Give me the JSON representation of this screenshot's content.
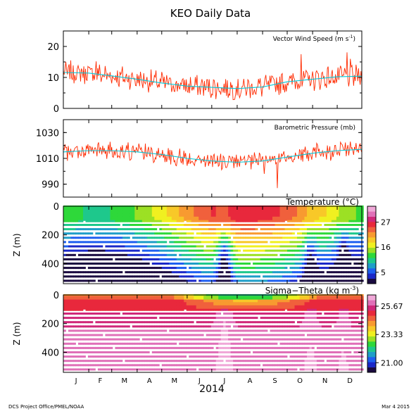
{
  "title": "KEO Daily Data",
  "footer_left": "DCS Project Office/PMEL/NOAA",
  "footer_right": "Mar  4 2015",
  "x_axis": {
    "months": [
      "J",
      "F",
      "M",
      "A",
      "M",
      "J",
      "J",
      "A",
      "S",
      "O",
      "N",
      "D"
    ],
    "year_label": "2014"
  },
  "colors": {
    "series_line": "#ff2a00",
    "mean_line": "#00c8d8",
    "palette": [
      "#1a0a40",
      "#1b28c8",
      "#1e5ff0",
      "#1e9ec8",
      "#1ec88c",
      "#2ed83a",
      "#9ce024",
      "#f0f020",
      "#f8c828",
      "#f89a30",
      "#f0603c",
      "#e8283c",
      "#d0287a",
      "#e070b8",
      "#f0a8d8"
    ]
  },
  "chart_data": [
    {
      "type": "line",
      "label": "Vector Wind Speed",
      "unit_label": "(m s",
      "unit_sup": "-1",
      "unit_close": ")",
      "xlim": [
        "2014-01-01",
        "2014-12-31"
      ],
      "ylim": [
        0,
        25
      ],
      "yticks": [
        0,
        10,
        20
      ],
      "mean_series": {
        "x": [
          "2014-01-01",
          "2014-02-01",
          "2014-03-01",
          "2014-04-01",
          "2014-05-01",
          "2014-06-01",
          "2014-07-01",
          "2014-08-01",
          "2014-09-01",
          "2014-10-01",
          "2014-11-01",
          "2014-12-01",
          "2014-12-31"
        ],
        "y": [
          11.6,
          11.4,
          10.5,
          9.4,
          8.2,
          7.2,
          6.8,
          6.4,
          6.9,
          8.6,
          9.4,
          10.2,
          10.4
        ]
      }
    },
    {
      "type": "line",
      "label": "Barometric Pressure",
      "unit_label": "(mb)",
      "xlim": [
        "2014-01-01",
        "2014-12-31"
      ],
      "ylim": [
        980,
        1040
      ],
      "yticks": [
        990,
        1010,
        1030
      ],
      "mean_series": {
        "x": [
          "2014-01-01",
          "2014-02-01",
          "2014-03-01",
          "2014-04-01",
          "2014-05-01",
          "2014-06-01",
          "2014-07-01",
          "2014-08-01",
          "2014-09-01",
          "2014-10-01",
          "2014-11-01",
          "2014-12-01",
          "2014-12-31"
        ],
        "y": [
          1015,
          1016,
          1016,
          1015,
          1013,
          1010,
          1008,
          1007,
          1008,
          1011,
          1014,
          1016,
          1017
        ]
      }
    },
    {
      "type": "heatmap",
      "label": "Temperature",
      "unit_label": "(°C)",
      "ylabel": "Z (m)",
      "yticks": [
        0,
        200,
        400
      ],
      "ylim": [
        540,
        0
      ],
      "colorbar": {
        "ticks": [
          5,
          16,
          27
        ],
        "range": [
          0,
          34
        ]
      }
    },
    {
      "type": "heatmap",
      "label": "Sigma−Theta",
      "unit_label": "(kg m",
      "unit_sup": "-3",
      "unit_close": ")",
      "ylabel": "Z (m)",
      "yticks": [
        0,
        200,
        400
      ],
      "ylim": [
        540,
        0
      ],
      "colorbar": {
        "ticks": [
          "21.00",
          "23.33",
          "25.67"
        ],
        "range": [
          20.2,
          26.6
        ]
      }
    }
  ]
}
